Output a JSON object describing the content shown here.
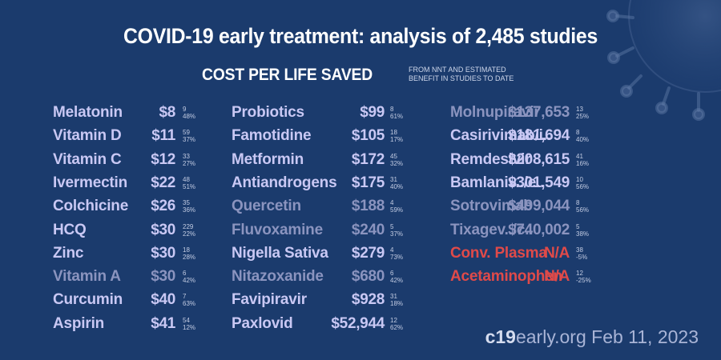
{
  "title": "COVID-19 early treatment: analysis of 2,485 studies",
  "subtitle": "COST PER LIFE SAVED",
  "note": "FROM NNT AND ESTIMATED BENEFIT IN STUDIES TO DATE",
  "footer": {
    "site_bold": "c19",
    "site_rest": "early.org",
    "date": "Feb 11, 2023"
  },
  "chart_data": {
    "type": "table",
    "columns": [
      [
        {
          "name": "Melatonin",
          "cost": "$8",
          "studies": "9",
          "improvement": "48%",
          "tone": "strong"
        },
        {
          "name": "Vitamin D",
          "cost": "$11",
          "studies": "59",
          "improvement": "37%",
          "tone": "strong"
        },
        {
          "name": "Vitamin C",
          "cost": "$12",
          "studies": "33",
          "improvement": "27%",
          "tone": "strong"
        },
        {
          "name": "Ivermectin",
          "cost": "$22",
          "studies": "48",
          "improvement": "51%",
          "tone": "strong"
        },
        {
          "name": "Colchicine",
          "cost": "$26",
          "studies": "35",
          "improvement": "36%",
          "tone": "strong"
        },
        {
          "name": "HCQ",
          "cost": "$30",
          "studies": "229",
          "improvement": "22%",
          "tone": "strong"
        },
        {
          "name": "Zinc",
          "cost": "$30",
          "studies": "18",
          "improvement": "28%",
          "tone": "strong"
        },
        {
          "name": "Vitamin A",
          "cost": "$30",
          "studies": "6",
          "improvement": "42%",
          "tone": "weak"
        },
        {
          "name": "Curcumin",
          "cost": "$40",
          "studies": "7",
          "improvement": "63%",
          "tone": "strong"
        },
        {
          "name": "Aspirin",
          "cost": "$41",
          "studies": "54",
          "improvement": "12%",
          "tone": "strong"
        }
      ],
      [
        {
          "name": "Probiotics",
          "cost": "$99",
          "studies": "8",
          "improvement": "61%",
          "tone": "strong"
        },
        {
          "name": "Famotidine",
          "cost": "$105",
          "studies": "18",
          "improvement": "17%",
          "tone": "strong"
        },
        {
          "name": "Metformin",
          "cost": "$172",
          "studies": "45",
          "improvement": "32%",
          "tone": "strong"
        },
        {
          "name": "Antiandrogens",
          "cost": "$175",
          "studies": "31",
          "improvement": "40%",
          "tone": "strong"
        },
        {
          "name": "Quercetin",
          "cost": "$188",
          "studies": "4",
          "improvement": "59%",
          "tone": "weak"
        },
        {
          "name": "Fluvoxamine",
          "cost": "$240",
          "studies": "5",
          "improvement": "37%",
          "tone": "weak"
        },
        {
          "name": "Nigella Sativa",
          "cost": "$279",
          "studies": "4",
          "improvement": "73%",
          "tone": "strong"
        },
        {
          "name": "Nitazoxanide",
          "cost": "$680",
          "studies": "6",
          "improvement": "42%",
          "tone": "weak"
        },
        {
          "name": "Favipiravir",
          "cost": "$928",
          "studies": "31",
          "improvement": "18%",
          "tone": "strong"
        },
        {
          "name": "Paxlovid",
          "cost": "$52,944",
          "studies": "12",
          "improvement": "62%",
          "tone": "strong"
        }
      ],
      [
        {
          "name": "Molnupiravir",
          "cost": "$137,653",
          "studies": "13",
          "improvement": "25%",
          "tone": "weak"
        },
        {
          "name": "Casirivimab/i..",
          "cost": "$181,694",
          "studies": "8",
          "improvement": "40%",
          "tone": "strong"
        },
        {
          "name": "Remdesivir",
          "cost": "$208,615",
          "studies": "41",
          "improvement": "16%",
          "tone": "strong"
        },
        {
          "name": "Bamlaniv../e..",
          "cost": "$301,549",
          "studies": "10",
          "improvement": "56%",
          "tone": "strong"
        },
        {
          "name": "Sotrovimab",
          "cost": "$499,044",
          "studies": "8",
          "improvement": "56%",
          "tone": "weak"
        },
        {
          "name": "Tixagev../c..",
          "cost": "$740,002",
          "studies": "5",
          "improvement": "38%",
          "tone": "weak"
        },
        {
          "name": "Conv. Plasma",
          "cost": "N/A",
          "studies": "38",
          "improvement": "-5%",
          "tone": "neg"
        },
        {
          "name": "Acetaminophen",
          "cost": "N/A",
          "studies": "12",
          "improvement": "-25%",
          "tone": "neg"
        }
      ]
    ]
  }
}
